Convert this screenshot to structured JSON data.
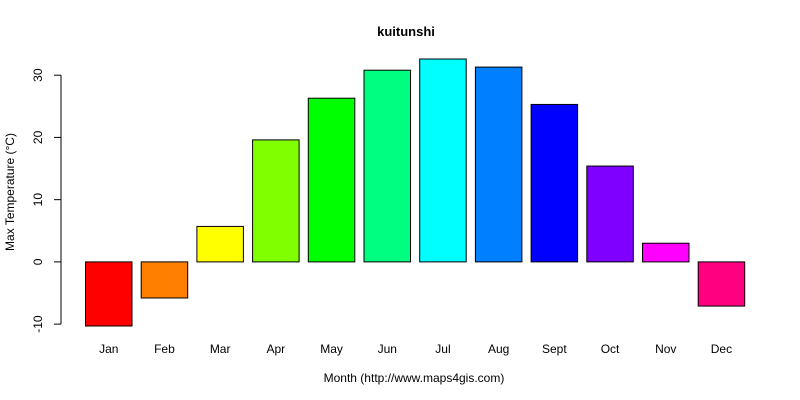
{
  "chart_data": {
    "type": "bar",
    "title": "kuitunshi",
    "xlabel": "Month (http://www.maps4gis.com)",
    "ylabel": "Max Temperature (°C)",
    "categories": [
      "Jan",
      "Feb",
      "Mar",
      "Apr",
      "May",
      "Jun",
      "Jul",
      "Aug",
      "Sept",
      "Oct",
      "Nov",
      "Dec"
    ],
    "values": [
      -10.3,
      -5.8,
      5.7,
      19.6,
      26.3,
      30.8,
      32.6,
      31.3,
      25.3,
      15.4,
      3.0,
      -7.1
    ],
    "colors": [
      "#ff0000",
      "#ff8000",
      "#ffff00",
      "#80ff00",
      "#00ff00",
      "#00ff80",
      "#00ffff",
      "#0080ff",
      "#0000ff",
      "#8000ff",
      "#ff00ff",
      "#ff0080"
    ],
    "y_ticks": [
      -10,
      0,
      10,
      20,
      30
    ],
    "y_tick_labels": [
      "-10",
      "0",
      "10",
      "20",
      "30"
    ],
    "ylim": [
      -10.3,
      32.6
    ],
    "grid": false,
    "legend": "none"
  }
}
